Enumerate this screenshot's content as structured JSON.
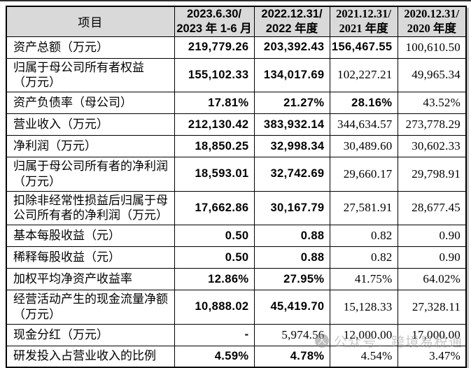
{
  "colors": {
    "header_bg": "#d9d9d9",
    "border": "#000000",
    "top_rule": "#2e2e2e",
    "watermark_gray": "#9a9a9a"
  },
  "watermark": {
    "icon": "wechat-official-account-icon",
    "icon_glyph": "人",
    "text": "公众号：跨境易税通"
  },
  "table": {
    "header": {
      "item": "项目",
      "periods": [
        {
          "line1": "2023.6.30/",
          "line2": "2023 年 1-6 月",
          "style": "sans"
        },
        {
          "line1": "2022.12.31/",
          "line2": "2022 年度",
          "style": "sans"
        },
        {
          "line1": "2021.12.31/",
          "line2": "2021 年度",
          "style": "serif"
        },
        {
          "line1": "2020.12.31/",
          "line2": "2020 年度",
          "style": "serif"
        }
      ]
    },
    "rows": [
      {
        "label": "资产总额（万元）",
        "tall": false,
        "cells": [
          {
            "value": "219,779.26",
            "bold": true
          },
          {
            "value": "203,392.43",
            "bold": true
          },
          {
            "value": "156,467.55",
            "bold": true
          },
          {
            "value": "100,610.50",
            "bold": false
          }
        ]
      },
      {
        "label": "归属于母公司所有者权益\n（万元）",
        "tall": true,
        "cells": [
          {
            "value": "155,102.33",
            "bold": true
          },
          {
            "value": "134,017.69",
            "bold": true
          },
          {
            "value": "102,227.21",
            "bold": false
          },
          {
            "value": "49,965.34",
            "bold": false
          }
        ]
      },
      {
        "label": "资产负债率（母公司）",
        "tall": false,
        "cells": [
          {
            "value": "17.81%",
            "bold": true
          },
          {
            "value": "21.27%",
            "bold": true
          },
          {
            "value": "28.16%",
            "bold": true
          },
          {
            "value": "43.52%",
            "bold": false
          }
        ]
      },
      {
        "label": "营业收入（万元）",
        "tall": false,
        "cells": [
          {
            "value": "212,130.42",
            "bold": true
          },
          {
            "value": "383,932.14",
            "bold": true
          },
          {
            "value": "344,634.57",
            "bold": false
          },
          {
            "value": "273,778.29",
            "bold": false
          }
        ]
      },
      {
        "label": "净利润（万元）",
        "tall": false,
        "cells": [
          {
            "value": "18,850.25",
            "bold": true
          },
          {
            "value": "32,998.34",
            "bold": true
          },
          {
            "value": "30,489.60",
            "bold": false
          },
          {
            "value": "30,602.33",
            "bold": false
          }
        ]
      },
      {
        "label": "归属于母公司所有者的净利润\n（万元）",
        "tall": true,
        "cells": [
          {
            "value": "18,593.01",
            "bold": true
          },
          {
            "value": "32,742.69",
            "bold": true
          },
          {
            "value": "29,660.17",
            "bold": false
          },
          {
            "value": "29,798.91",
            "bold": false
          }
        ]
      },
      {
        "label": "扣除非经常性损益后归属于母\n公司所有者的净利润（万元）",
        "tall": true,
        "cells": [
          {
            "value": "17,662.86",
            "bold": true
          },
          {
            "value": "30,167.79",
            "bold": true
          },
          {
            "value": "27,581.91",
            "bold": false
          },
          {
            "value": "28,677.45",
            "bold": false
          }
        ]
      },
      {
        "label": "基本每股收益（元）",
        "tall": false,
        "cells": [
          {
            "value": "0.50",
            "bold": true
          },
          {
            "value": "0.88",
            "bold": true
          },
          {
            "value": "0.82",
            "bold": false
          },
          {
            "value": "0.90",
            "bold": false
          }
        ]
      },
      {
        "label": "稀释每股收益（元）",
        "tall": false,
        "cells": [
          {
            "value": "0.50",
            "bold": true
          },
          {
            "value": "0.88",
            "bold": true
          },
          {
            "value": "0.82",
            "bold": false
          },
          {
            "value": "0.90",
            "bold": false
          }
        ]
      },
      {
        "label": "加权平均净资产收益率",
        "tall": false,
        "cells": [
          {
            "value": "12.86%",
            "bold": true
          },
          {
            "value": "27.95%",
            "bold": true
          },
          {
            "value": "41.75%",
            "bold": false
          },
          {
            "value": "64.02%",
            "bold": false
          }
        ]
      },
      {
        "label": "经营活动产生的现金流量净额\n（万元）",
        "tall": true,
        "cells": [
          {
            "value": "10,888.02",
            "bold": true
          },
          {
            "value": "45,419.70",
            "bold": true
          },
          {
            "value": "15,128.33",
            "bold": false
          },
          {
            "value": "27,328.11",
            "bold": false
          }
        ]
      },
      {
        "label": "现金分红（万元）",
        "tall": false,
        "cells": [
          {
            "value": "-",
            "bold": true
          },
          {
            "value": "5,974.56",
            "bold": false
          },
          {
            "value": "12,000.00",
            "bold": false
          },
          {
            "value": "17,000.00",
            "bold": false
          }
        ]
      },
      {
        "label": "研发投入占营业收入的比例",
        "tall": false,
        "cells": [
          {
            "value": "4.59%",
            "bold": true
          },
          {
            "value": "4.78%",
            "bold": true
          },
          {
            "value": "4.54%",
            "bold": false
          },
          {
            "value": "3.47%",
            "bold": false
          }
        ]
      }
    ]
  }
}
